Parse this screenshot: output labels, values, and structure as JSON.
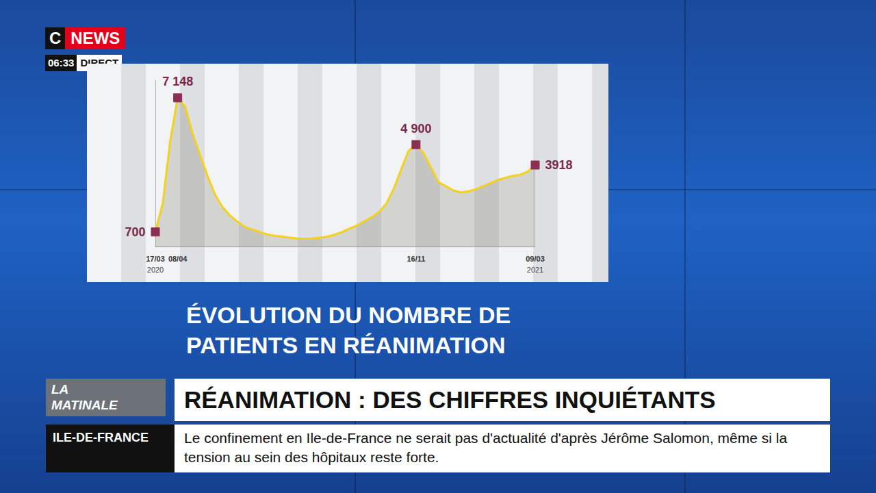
{
  "header": {
    "logo": [
      "C",
      "NEWS"
    ],
    "time": "06:33",
    "live": "DIRECT"
  },
  "chart_data": {
    "type": "line",
    "title": "ÉVOLUTION DU NOMBRE DE PATIENTS EN RÉANIMATION",
    "categories": [
      "17/03",
      null,
      null,
      "08/04",
      null,
      null,
      null,
      null,
      null,
      null,
      null,
      null,
      null,
      null,
      null,
      null,
      null,
      null,
      null,
      null,
      null,
      null,
      null,
      null,
      null,
      null,
      null,
      null,
      null,
      null,
      null,
      null,
      null,
      null,
      null,
      "16/11",
      null,
      null,
      null,
      null,
      null,
      null,
      null,
      null,
      null,
      null,
      null,
      null,
      null,
      null,
      null,
      "09/03"
    ],
    "values": [
      700,
      2080,
      5100,
      7148,
      6730,
      5430,
      4400,
      3400,
      2500,
      1900,
      1500,
      1200,
      950,
      820,
      700,
      580,
      520,
      480,
      430,
      390,
      380,
      390,
      420,
      470,
      560,
      690,
      850,
      1000,
      1200,
      1400,
      1650,
      2050,
      2770,
      3700,
      4600,
      4900,
      4500,
      3800,
      3100,
      2900,
      2700,
      2600,
      2650,
      2750,
      2900,
      3050,
      3200,
      3300,
      3400,
      3450,
      3600,
      3918
    ],
    "value_labels": [
      "700",
      null,
      null,
      "7 148",
      null,
      null,
      null,
      null,
      null,
      null,
      null,
      null,
      null,
      null,
      null,
      null,
      null,
      null,
      null,
      null,
      null,
      null,
      null,
      null,
      null,
      null,
      null,
      null,
      null,
      null,
      null,
      null,
      null,
      null,
      null,
      "4 900",
      null,
      null,
      null,
      null,
      null,
      null,
      null,
      null,
      null,
      null,
      null,
      null,
      null,
      null,
      null,
      "3918"
    ],
    "annotations": [
      {
        "text": "2020",
        "at": "17/03"
      },
      {
        "text": "2021",
        "at": "09/03"
      }
    ],
    "ylim": [
      0,
      8000
    ],
    "yticks": [],
    "grid": false,
    "tick_labels": "x",
    "data_labels": true,
    "color": "#f2d21c",
    "marker": "square",
    "line_style": "solid"
  },
  "show": "LA MATINALE",
  "headline": "RÉANIMATION : DES CHIFFRES INQUIÉTANTS",
  "ticker": {
    "region": "ILE-DE-FRANCE",
    "text": "Le confinement en Ile-de-France ne serait pas d'actualité d'après Jérôme Salomon, même si la tension au sein des hôpitaux reste forte."
  }
}
